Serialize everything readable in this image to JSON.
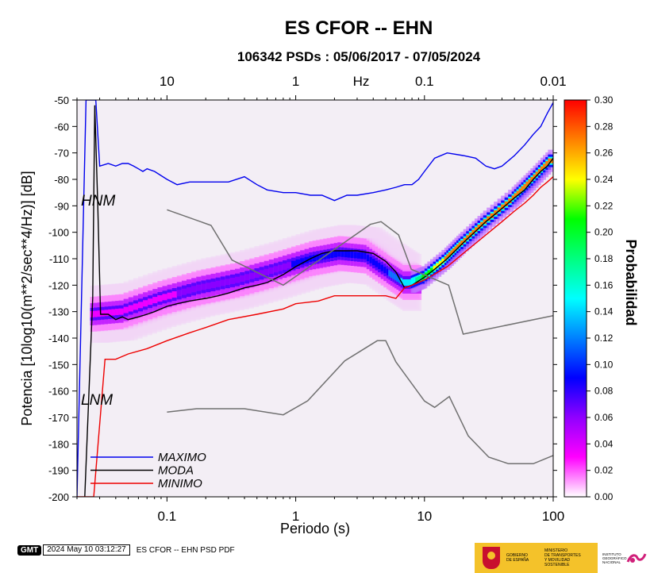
{
  "header": {
    "title": "ES CFOR -- EHN",
    "subtitle": "106342 PSDs : 05/06/2017 - 07/05/2024"
  },
  "footer": {
    "logo_text": "GMT",
    "timestamp": "2024 May 10 03:12:27",
    "caption": "ES CFOR -- EHN PSD PDF",
    "gob_text": [
      "GOBIERNO",
      "DE ESPAÑA"
    ],
    "ministry_text": [
      "MINISTERIO",
      "DE TRANSPORTES",
      "Y MOVILIDAD SOSTENIBLE"
    ],
    "ign_text": [
      "INSTITUTO",
      "GEOGRÁFICO",
      "NACIONAL"
    ]
  },
  "chart_data": {
    "type": "heatmap",
    "xlabel": "Periodo (s)",
    "ylabel": "Potencia [10log10(m**2/sec**4/Hz)] [dB]",
    "top_axis_label": "Hz",
    "xscale": "log",
    "xlim": [
      0.02,
      100
    ],
    "ylim": [
      -200,
      -50
    ],
    "x_ticks": [
      0.1,
      1,
      10,
      100
    ],
    "x_tick_labels": [
      "0.1",
      "1",
      "10",
      "100"
    ],
    "top_ticks": [
      0.1,
      1,
      10,
      100
    ],
    "top_tick_labels": [
      "10",
      "1",
      "0.1",
      "0.01"
    ],
    "y_ticks": [
      -200,
      -190,
      -180,
      -170,
      -160,
      -150,
      -140,
      -130,
      -120,
      -110,
      -100,
      -90,
      -80,
      -70,
      -60,
      -50
    ],
    "y_tick_labels": [
      "-200",
      "-190",
      "-180",
      "-170",
      "-160",
      "-150",
      "-140",
      "-130",
      "-120",
      "-110",
      "-100",
      "-90",
      "-80",
      "-70",
      "-60",
      "-50"
    ],
    "colorbar": {
      "label": "Probabilidad",
      "range": [
        0,
        0.3
      ],
      "ticks": [
        0.0,
        0.02,
        0.04,
        0.06,
        0.08,
        0.1,
        0.12,
        0.14,
        0.16,
        0.18,
        0.2,
        0.22,
        0.24,
        0.26,
        0.28,
        0.3
      ],
      "tick_labels": [
        "0.00",
        "0.02",
        "0.04",
        "0.06",
        "0.08",
        "0.10",
        "0.12",
        "0.14",
        "0.16",
        "0.18",
        "0.20",
        "0.22",
        "0.24",
        "0.26",
        "0.28",
        "0.30"
      ],
      "colors": [
        "#ffffff",
        "#ff00ff",
        "#9000ff",
        "#0000ff",
        "#0080ff",
        "#00ffff",
        "#00ff80",
        "#00ff00",
        "#ffff00",
        "#ff8000",
        "#ff0000"
      ]
    },
    "model_labels": {
      "high": "HNM",
      "low": "LNM"
    },
    "legend": {
      "position": "bottom-left",
      "entries": [
        {
          "name": "MAXIMO",
          "color": "#0000ee"
        },
        {
          "name": "MODA",
          "color": "#000000"
        },
        {
          "name": "MINIMO",
          "color": "#ee0000"
        }
      ]
    },
    "series": [
      {
        "name": "MAXIMO",
        "color": "#0000ee",
        "points": [
          [
            0.02,
            -200
          ],
          [
            0.0235,
            -50
          ],
          [
            0.028,
            -50
          ],
          [
            0.03,
            -75
          ],
          [
            0.035,
            -74
          ],
          [
            0.04,
            -75
          ],
          [
            0.045,
            -74
          ],
          [
            0.05,
            -74
          ],
          [
            0.055,
            -75
          ],
          [
            0.06,
            -76
          ],
          [
            0.065,
            -77
          ],
          [
            0.07,
            -76
          ],
          [
            0.08,
            -77
          ],
          [
            0.1,
            -80
          ],
          [
            0.12,
            -82
          ],
          [
            0.15,
            -81
          ],
          [
            0.2,
            -81
          ],
          [
            0.3,
            -81
          ],
          [
            0.4,
            -79
          ],
          [
            0.5,
            -82
          ],
          [
            0.6,
            -84
          ],
          [
            0.8,
            -85
          ],
          [
            1,
            -85
          ],
          [
            1.3,
            -86
          ],
          [
            1.6,
            -86
          ],
          [
            2,
            -88
          ],
          [
            2.5,
            -86
          ],
          [
            3,
            -86
          ],
          [
            4,
            -85
          ],
          [
            5,
            -84
          ],
          [
            6,
            -83
          ],
          [
            7,
            -82
          ],
          [
            8,
            -82
          ],
          [
            9,
            -80
          ],
          [
            10,
            -77
          ],
          [
            12,
            -72
          ],
          [
            15,
            -70
          ],
          [
            20,
            -71
          ],
          [
            25,
            -72
          ],
          [
            30,
            -75
          ],
          [
            35,
            -76
          ],
          [
            40,
            -75
          ],
          [
            50,
            -71
          ],
          [
            60,
            -67
          ],
          [
            70,
            -63
          ],
          [
            80,
            -60
          ],
          [
            90,
            -55
          ],
          [
            100,
            -51
          ]
        ]
      },
      {
        "name": "MODA",
        "color": "#000000",
        "points": [
          [
            0.023,
            -200
          ],
          [
            0.0265,
            -125
          ],
          [
            0.0275,
            -52
          ],
          [
            0.029,
            -90
          ],
          [
            0.0305,
            -131
          ],
          [
            0.035,
            -131
          ],
          [
            0.04,
            -133
          ],
          [
            0.045,
            -132
          ],
          [
            0.05,
            -133
          ],
          [
            0.06,
            -132
          ],
          [
            0.07,
            -131
          ],
          [
            0.08,
            -130
          ],
          [
            0.1,
            -128
          ],
          [
            0.12,
            -127
          ],
          [
            0.15,
            -126
          ],
          [
            0.2,
            -125
          ],
          [
            0.25,
            -124
          ],
          [
            0.3,
            -123
          ],
          [
            0.4,
            -121
          ],
          [
            0.5,
            -120
          ],
          [
            0.6,
            -119
          ],
          [
            0.8,
            -116
          ],
          [
            1,
            -113
          ],
          [
            1.3,
            -110
          ],
          [
            1.6,
            -108
          ],
          [
            2,
            -107
          ],
          [
            2.5,
            -107
          ],
          [
            3,
            -107
          ],
          [
            4,
            -108
          ],
          [
            5,
            -111
          ],
          [
            6,
            -115
          ],
          [
            7,
            -121
          ],
          [
            8,
            -120
          ],
          [
            10,
            -117
          ],
          [
            12,
            -114
          ],
          [
            15,
            -110
          ],
          [
            20,
            -104
          ],
          [
            30,
            -96
          ],
          [
            40,
            -91
          ],
          [
            50,
            -87
          ],
          [
            60,
            -84
          ],
          [
            70,
            -80
          ],
          [
            80,
            -77
          ],
          [
            90,
            -75
          ],
          [
            100,
            -72
          ]
        ]
      },
      {
        "name": "MINIMO",
        "color": "#ee0000",
        "points": [
          [
            0.02,
            -200
          ],
          [
            0.027,
            -200
          ],
          [
            0.033,
            -148
          ],
          [
            0.035,
            -148
          ],
          [
            0.04,
            -148
          ],
          [
            0.05,
            -146
          ],
          [
            0.07,
            -144
          ],
          [
            0.1,
            -141
          ],
          [
            0.15,
            -138
          ],
          [
            0.2,
            -136
          ],
          [
            0.3,
            -133
          ],
          [
            0.5,
            -131
          ],
          [
            0.8,
            -129
          ],
          [
            1,
            -127
          ],
          [
            1.5,
            -126
          ],
          [
            2,
            -124
          ],
          [
            3,
            -124
          ],
          [
            4,
            -124
          ],
          [
            5,
            -124
          ],
          [
            6,
            -125
          ],
          [
            7,
            -121
          ],
          [
            8,
            -120
          ],
          [
            10,
            -118
          ],
          [
            15,
            -113
          ],
          [
            20,
            -108
          ],
          [
            30,
            -101
          ],
          [
            40,
            -96
          ],
          [
            50,
            -92
          ],
          [
            60,
            -89
          ],
          [
            70,
            -86
          ],
          [
            80,
            -83
          ],
          [
            90,
            -81
          ],
          [
            100,
            -79
          ]
        ]
      },
      {
        "name": "HNM",
        "color": "#707070",
        "points": [
          [
            0.1,
            -91.5
          ],
          [
            0.22,
            -97.4
          ],
          [
            0.32,
            -110.5
          ],
          [
            0.8,
            -120
          ],
          [
            3.8,
            -97
          ],
          [
            4.6,
            -96
          ],
          [
            6.3,
            -101
          ],
          [
            7.9,
            -114
          ],
          [
            15.4,
            -120
          ],
          [
            20,
            -138.5
          ],
          [
            100,
            -131.5
          ]
        ]
      },
      {
        "name": "LNM",
        "color": "#707070",
        "points": [
          [
            0.1,
            -168
          ],
          [
            0.17,
            -166.7
          ],
          [
            0.4,
            -166.7
          ],
          [
            0.8,
            -169
          ],
          [
            1.24,
            -163.7
          ],
          [
            2.4,
            -148.6
          ],
          [
            4.3,
            -141
          ],
          [
            5,
            -141
          ],
          [
            6,
            -149
          ],
          [
            10,
            -163.8
          ],
          [
            12,
            -166.2
          ],
          [
            15.6,
            -162.1
          ],
          [
            21.9,
            -177
          ],
          [
            31.6,
            -185
          ],
          [
            45,
            -187.5
          ],
          [
            70,
            -187.5
          ],
          [
            100,
            -184.4
          ]
        ]
      }
    ],
    "density_ridge": {
      "description_values": "mode ridge with peak probability about 0.28 for periods above 10 s",
      "points": [
        [
          0.03,
          -131,
          0.04
        ],
        [
          0.05,
          -130,
          0.04
        ],
        [
          0.1,
          -125,
          0.04
        ],
        [
          0.2,
          -121,
          0.05
        ],
        [
          0.4,
          -118,
          0.06
        ],
        [
          0.8,
          -114,
          0.07
        ],
        [
          1.5,
          -110,
          0.08
        ],
        [
          2.5,
          -108,
          0.08
        ],
        [
          4,
          -109,
          0.08
        ],
        [
          6,
          -115,
          0.1
        ],
        [
          8,
          -119,
          0.14
        ],
        [
          10,
          -117,
          0.2
        ],
        [
          15,
          -110,
          0.26
        ],
        [
          20,
          -104,
          0.27
        ],
        [
          30,
          -96,
          0.28
        ],
        [
          50,
          -87,
          0.28
        ],
        [
          70,
          -80,
          0.28
        ],
        [
          100,
          -72,
          0.26
        ]
      ]
    }
  }
}
